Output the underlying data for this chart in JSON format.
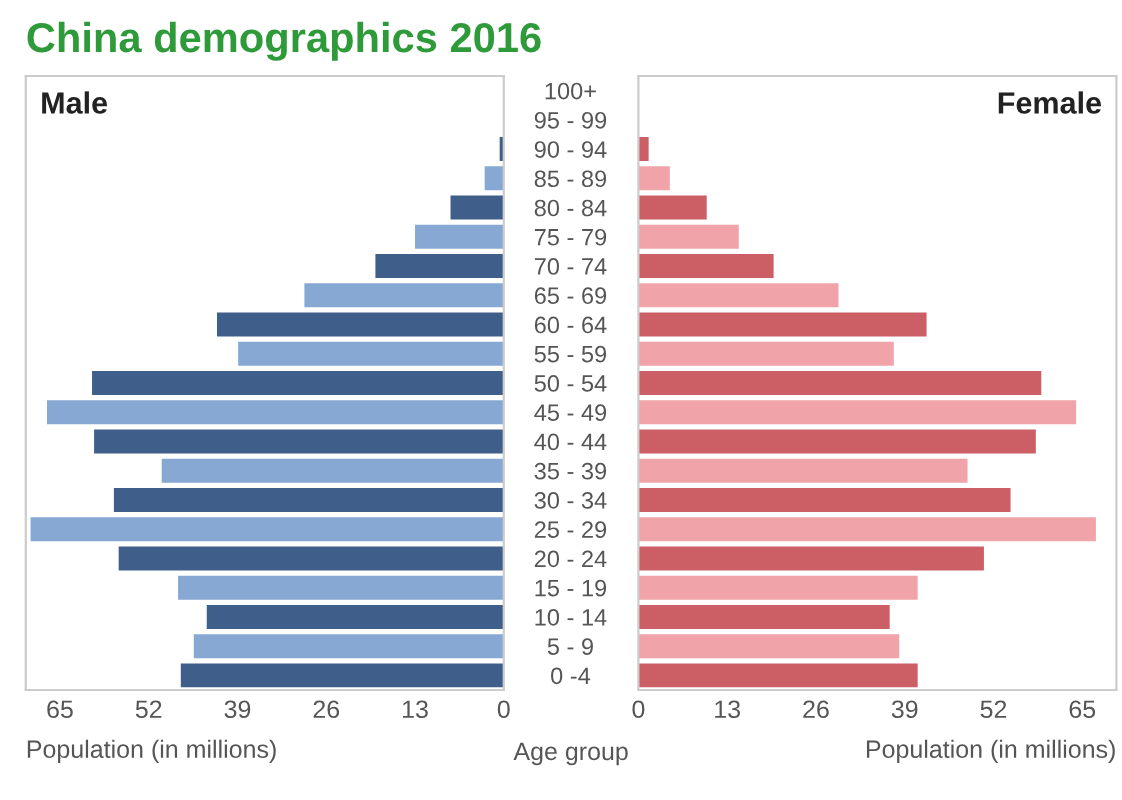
{
  "chart_data": [
    {
      "type": "bar",
      "orientation": "horizontal",
      "title": "China demographics 2016",
      "annotations": [
        "Male"
      ],
      "xlabel": "Population (in millions)",
      "categories": [
        "100+",
        "95 - 99",
        "90 - 94",
        "85 - 89",
        "80 - 84",
        "75 - 79",
        "70 - 74",
        "65 - 69",
        "60 - 64",
        "55 - 59",
        "50 - 54",
        "45 - 49",
        "40 - 44",
        "35 - 39",
        "30 - 34",
        "25 - 29",
        "20 - 24",
        "15 - 19",
        "10 - 14",
        "5 - 9",
        "0 -4"
      ],
      "values": [
        0,
        null,
        0.6,
        2.8,
        7.8,
        13.0,
        18.8,
        29.2,
        42.0,
        38.9,
        60.3,
        66.9,
        60.0,
        50.1,
        57.1,
        69.3,
        56.4,
        47.7,
        43.5,
        45.4,
        47.3
      ],
      "colors": [
        "#87a8d3",
        "#3f5f8a",
        "#3f5f8a",
        "#87a8d3",
        "#3f5f8a",
        "#87a8d3",
        "#3f5f8a",
        "#87a8d3",
        "#3f5f8a",
        "#87a8d3",
        "#3f5f8a",
        "#87a8d3",
        "#3f5f8a",
        "#87a8d3",
        "#3f5f8a",
        "#87a8d3",
        "#3f5f8a",
        "#87a8d3",
        "#3f5f8a",
        "#87a8d3",
        "#3f5f8a"
      ],
      "xlim": [
        70,
        0
      ],
      "xticks": [
        65,
        52,
        39,
        26,
        13,
        0
      ],
      "grid": false,
      "legend": false
    },
    {
      "type": "bar",
      "orientation": "horizontal",
      "annotations": [
        "Female"
      ],
      "xlabel": "Population (in millions)",
      "ylabel": "Age group",
      "categories": [
        null,
        null,
        null,
        null,
        null,
        null,
        null,
        null,
        null,
        null,
        null,
        null,
        null,
        null,
        null,
        null,
        null,
        null,
        null,
        null,
        null
      ],
      "values": [
        0,
        null,
        1.5,
        4.6,
        10.0,
        14.7,
        19.8,
        29.3,
        42.2,
        37.4,
        59.0,
        64.1,
        58.2,
        48.2,
        54.5,
        67.0,
        50.6,
        40.9,
        36.8,
        38.2,
        40.9
      ],
      "colors": [
        "#f0a3a8",
        "#cc5e66",
        "#cc5e66",
        "#f0a3a8",
        "#cc5e66",
        "#f0a3a8",
        "#cc5e66",
        "#f0a3a8",
        "#cc5e66",
        "#f0a3a8",
        "#cc5e66",
        "#f0a3a8",
        "#cc5e66",
        "#f0a3a8",
        "#cc5e66",
        "#f0a3a8",
        "#cc5e66",
        "#f0a3a8",
        "#cc5e66",
        "#f0a3a8",
        "#cc5e66"
      ],
      "xlim": [
        0,
        70
      ],
      "xticks": [
        0,
        13,
        26,
        39,
        52,
        65
      ],
      "tick_labels": "x",
      "grid": false,
      "legend": false
    }
  ]
}
